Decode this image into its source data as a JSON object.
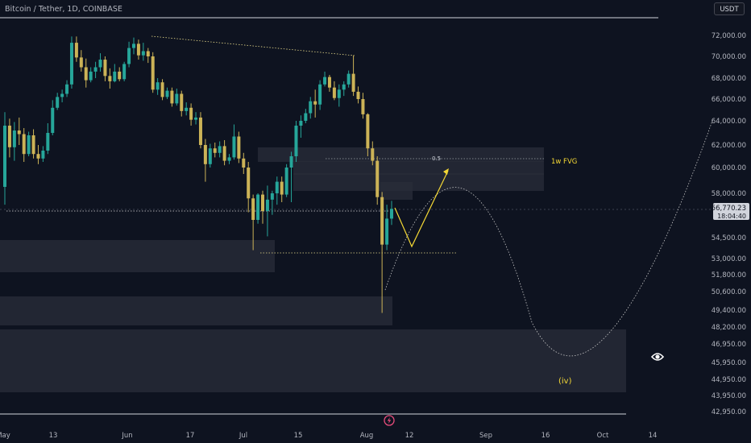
{
  "header": {
    "symbol": "Bitcoin / Tether, 1D, COINBASE",
    "currency": "USDT"
  },
  "price_label": {
    "value": "56,770.23",
    "countdown": "18:04:40"
  },
  "colors": {
    "background": "#0e1320",
    "up": "#26a69a",
    "down": "#ccb357",
    "zone": "#2a2e39",
    "annotation": "#f4d835",
    "axis_text": "#b2b5be",
    "gridline": "#d1d4dc",
    "price_tag": "#d1d4dc"
  },
  "icons": {
    "eye": "eye-icon",
    "flash": "lightning-icon"
  },
  "chart_data": {
    "type": "candlestick",
    "title": "Bitcoin / Tether, 1D, COINBASE",
    "y_ticks": [
      "72,000.00",
      "70,000.00",
      "68,000.00",
      "66,000.00",
      "64,000.00",
      "62,000.00",
      "60,000.00",
      "58,000.00",
      "54,500.00",
      "53,000.00",
      "51,800.00",
      "50,600.00",
      "49,400.00",
      "48,200.00",
      "46,950.00",
      "45,950.00",
      "44,950.00",
      "43,950.00",
      "42,950.00"
    ],
    "x_ticks": [
      "May",
      "13",
      "Jun",
      "17",
      "Jul",
      "15",
      "Aug",
      "12",
      "Sep",
      "16",
      "Oct",
      "14"
    ],
    "current_price": 56770.23,
    "annotations": {
      "fib_level": "0.5",
      "zone_label": "1w FVG",
      "wave_label": "(iv)"
    },
    "candles": [
      {
        "o": 58500,
        "h": 64800,
        "l": 57100,
        "c": 63600
      },
      {
        "o": 63600,
        "h": 64200,
        "l": 60900,
        "c": 61800
      },
      {
        "o": 61800,
        "h": 63900,
        "l": 60600,
        "c": 63200
      },
      {
        "o": 63200,
        "h": 64300,
        "l": 62000,
        "c": 62900
      },
      {
        "o": 62900,
        "h": 63400,
        "l": 60500,
        "c": 61200
      },
      {
        "o": 61200,
        "h": 63100,
        "l": 61000,
        "c": 62800
      },
      {
        "o": 62800,
        "h": 63300,
        "l": 60800,
        "c": 61200
      },
      {
        "o": 61200,
        "h": 62000,
        "l": 60300,
        "c": 60800
      },
      {
        "o": 60800,
        "h": 61900,
        "l": 60500,
        "c": 61500
      },
      {
        "o": 61500,
        "h": 63800,
        "l": 61200,
        "c": 63000
      },
      {
        "o": 63000,
        "h": 65900,
        "l": 62800,
        "c": 65200
      },
      {
        "o": 65200,
        "h": 66600,
        "l": 65000,
        "c": 66200
      },
      {
        "o": 66200,
        "h": 66900,
        "l": 65700,
        "c": 66500
      },
      {
        "o": 66500,
        "h": 67800,
        "l": 66200,
        "c": 67400
      },
      {
        "o": 67400,
        "h": 71900,
        "l": 67000,
        "c": 71300
      },
      {
        "o": 71300,
        "h": 71900,
        "l": 69500,
        "c": 69900
      },
      {
        "o": 69900,
        "h": 70600,
        "l": 68600,
        "c": 69000
      },
      {
        "o": 69000,
        "h": 69800,
        "l": 67100,
        "c": 67800
      },
      {
        "o": 67800,
        "h": 69000,
        "l": 67600,
        "c": 68600
      },
      {
        "o": 68600,
        "h": 69500,
        "l": 68000,
        "c": 69000
      },
      {
        "o": 69000,
        "h": 70300,
        "l": 68600,
        "c": 69700
      },
      {
        "o": 69700,
        "h": 70000,
        "l": 67700,
        "c": 68200
      },
      {
        "o": 68200,
        "h": 68900,
        "l": 67000,
        "c": 67700
      },
      {
        "o": 67700,
        "h": 69300,
        "l": 67600,
        "c": 68600
      },
      {
        "o": 68600,
        "h": 69000,
        "l": 67700,
        "c": 67900
      },
      {
        "o": 67900,
        "h": 69500,
        "l": 67700,
        "c": 69300
      },
      {
        "o": 69300,
        "h": 71400,
        "l": 69000,
        "c": 70800
      },
      {
        "o": 70800,
        "h": 71800,
        "l": 70200,
        "c": 71200
      },
      {
        "o": 71200,
        "h": 71600,
        "l": 69700,
        "c": 70100
      },
      {
        "o": 70100,
        "h": 71300,
        "l": 69600,
        "c": 70500
      },
      {
        "o": 70500,
        "h": 70800,
        "l": 69400,
        "c": 70000
      },
      {
        "o": 70000,
        "h": 70400,
        "l": 66600,
        "c": 66900
      },
      {
        "o": 66900,
        "h": 68000,
        "l": 66400,
        "c": 67600
      },
      {
        "o": 67600,
        "h": 67900,
        "l": 65900,
        "c": 66200
      },
      {
        "o": 66200,
        "h": 67100,
        "l": 66000,
        "c": 66800
      },
      {
        "o": 66800,
        "h": 67100,
        "l": 65300,
        "c": 65600
      },
      {
        "o": 65600,
        "h": 67000,
        "l": 65400,
        "c": 66500
      },
      {
        "o": 66500,
        "h": 66800,
        "l": 64400,
        "c": 64900
      },
      {
        "o": 64900,
        "h": 65700,
        "l": 64500,
        "c": 65200
      },
      {
        "o": 65200,
        "h": 65600,
        "l": 63600,
        "c": 64100
      },
      {
        "o": 64100,
        "h": 64800,
        "l": 63700,
        "c": 64300
      },
      {
        "o": 64300,
        "h": 64800,
        "l": 61700,
        "c": 62000
      },
      {
        "o": 62000,
        "h": 62500,
        "l": 58900,
        "c": 60300
      },
      {
        "o": 60300,
        "h": 62100,
        "l": 60000,
        "c": 61700
      },
      {
        "o": 61700,
        "h": 62200,
        "l": 60900,
        "c": 61300
      },
      {
        "o": 61300,
        "h": 62300,
        "l": 60900,
        "c": 61900
      },
      {
        "o": 61900,
        "h": 62400,
        "l": 60200,
        "c": 60600
      },
      {
        "o": 60600,
        "h": 61200,
        "l": 60300,
        "c": 60900
      },
      {
        "o": 60900,
        "h": 63700,
        "l": 60700,
        "c": 62700
      },
      {
        "o": 62700,
        "h": 63100,
        "l": 60400,
        "c": 60800
      },
      {
        "o": 60800,
        "h": 61300,
        "l": 59500,
        "c": 60000
      },
      {
        "o": 60000,
        "h": 60500,
        "l": 56500,
        "c": 57600
      },
      {
        "o": 57600,
        "h": 57900,
        "l": 53600,
        "c": 55900
      },
      {
        "o": 55900,
        "h": 58000,
        "l": 55600,
        "c": 57900
      },
      {
        "o": 57900,
        "h": 58200,
        "l": 55600,
        "c": 56600
      },
      {
        "o": 56600,
        "h": 58600,
        "l": 54600,
        "c": 57500
      },
      {
        "o": 57500,
        "h": 58200,
        "l": 56300,
        "c": 58000
      },
      {
        "o": 58000,
        "h": 59300,
        "l": 57100,
        "c": 58900
      },
      {
        "o": 58900,
        "h": 59300,
        "l": 57300,
        "c": 57900
      },
      {
        "o": 57900,
        "h": 60300,
        "l": 57700,
        "c": 60000
      },
      {
        "o": 60000,
        "h": 61400,
        "l": 57300,
        "c": 61000
      },
      {
        "o": 61000,
        "h": 64000,
        "l": 60500,
        "c": 63600
      },
      {
        "o": 63600,
        "h": 64500,
        "l": 62600,
        "c": 64000
      },
      {
        "o": 64000,
        "h": 65100,
        "l": 63800,
        "c": 64700
      },
      {
        "o": 64700,
        "h": 66200,
        "l": 64200,
        "c": 65800
      },
      {
        "o": 65800,
        "h": 66900,
        "l": 64300,
        "c": 65500
      },
      {
        "o": 65500,
        "h": 67800,
        "l": 65000,
        "c": 67400
      },
      {
        "o": 67400,
        "h": 68600,
        "l": 67200,
        "c": 68100
      },
      {
        "o": 68100,
        "h": 68300,
        "l": 66700,
        "c": 67100
      },
      {
        "o": 67100,
        "h": 67700,
        "l": 65900,
        "c": 66100
      },
      {
        "o": 66100,
        "h": 67400,
        "l": 65300,
        "c": 66900
      },
      {
        "o": 66900,
        "h": 67700,
        "l": 66300,
        "c": 67400
      },
      {
        "o": 67400,
        "h": 68700,
        "l": 67100,
        "c": 68400
      },
      {
        "o": 68400,
        "h": 70100,
        "l": 66300,
        "c": 66700
      },
      {
        "o": 66700,
        "h": 67200,
        "l": 65600,
        "c": 66000
      },
      {
        "o": 66000,
        "h": 66600,
        "l": 64200,
        "c": 64600
      },
      {
        "o": 64600,
        "h": 64700,
        "l": 61000,
        "c": 61700
      },
      {
        "o": 61700,
        "h": 62300,
        "l": 60200,
        "c": 60600
      },
      {
        "o": 60600,
        "h": 61000,
        "l": 57100,
        "c": 57700
      },
      {
        "o": 57700,
        "h": 58100,
        "l": 49200,
        "c": 54000
      },
      {
        "o": 54000,
        "h": 57100,
        "l": 53600,
        "c": 56000
      },
      {
        "o": 56000,
        "h": 57400,
        "l": 55500,
        "c": 56770
      }
    ]
  }
}
